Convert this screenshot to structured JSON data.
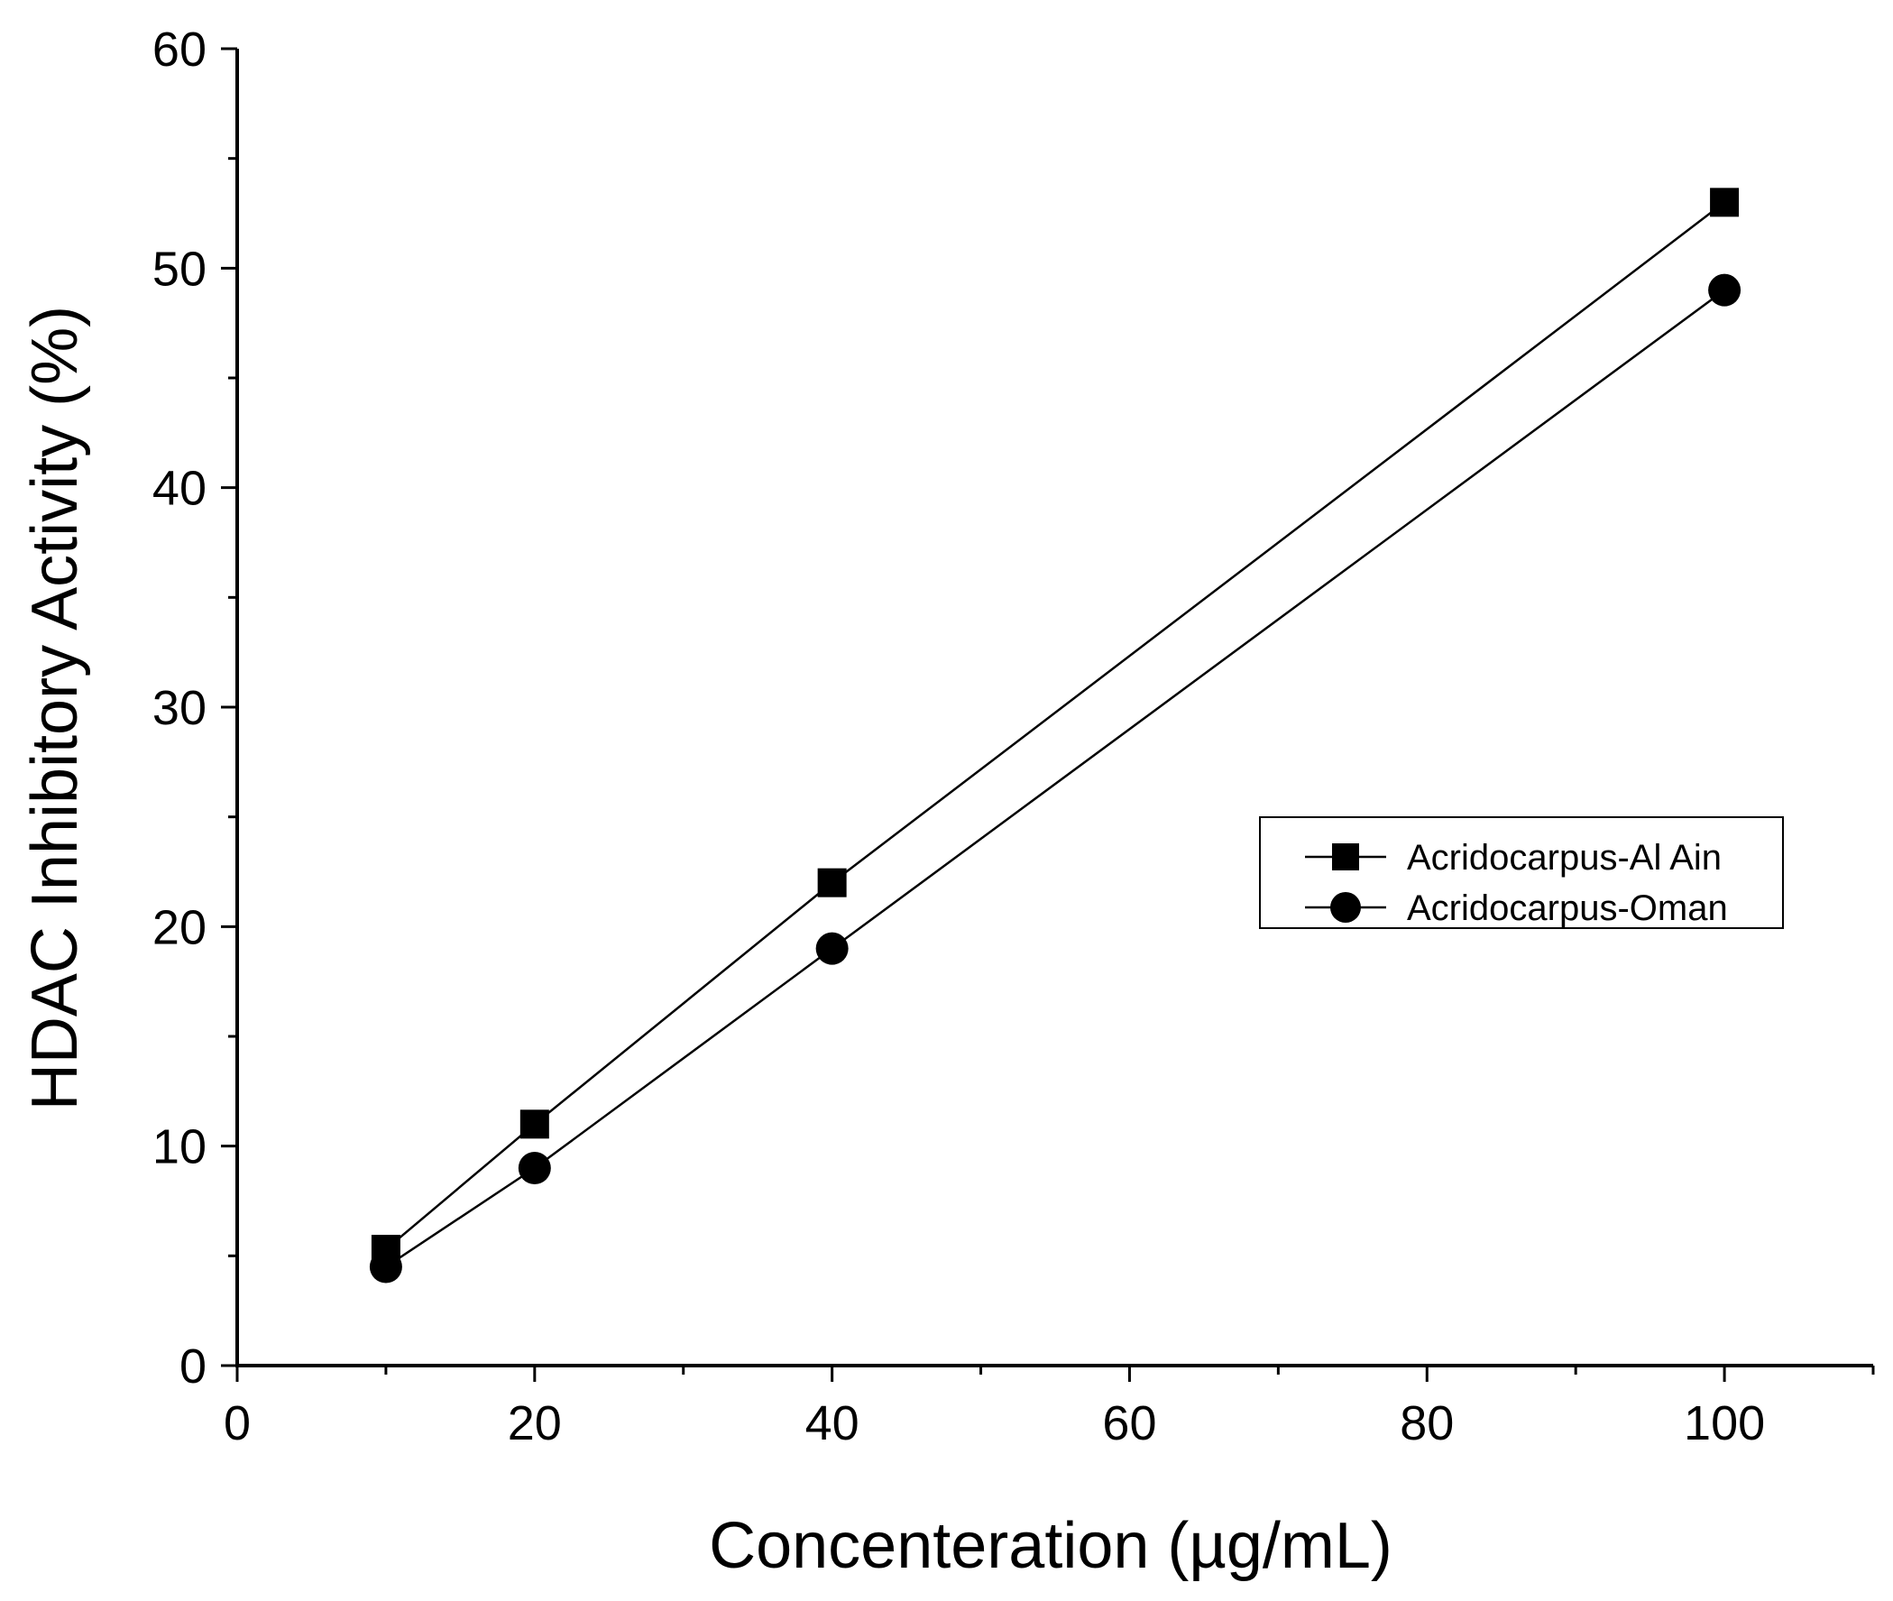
{
  "chart_data": {
    "type": "line",
    "title": "",
    "xlabel": "Concenteration (µg/mL)",
    "ylabel": "HDAC Inhibitory Activity (%)",
    "xlim": [
      0,
      110
    ],
    "ylim": [
      0,
      60
    ],
    "xticks": [
      0,
      20,
      40,
      60,
      80,
      100
    ],
    "yticks": [
      0,
      10,
      20,
      30,
      40,
      50,
      60
    ],
    "x_minor_step": 10,
    "y_minor_step": 5,
    "grid": false,
    "legend_position": "right-middle",
    "series": [
      {
        "name": "Acridocarpus-Al Ain",
        "marker": "square",
        "color": "#000000",
        "x": [
          10,
          20,
          40,
          100
        ],
        "y": [
          5.3,
          11,
          22,
          53
        ]
      },
      {
        "name": "Acridocarpus-Oman",
        "marker": "circle",
        "color": "#000000",
        "x": [
          10,
          20,
          40,
          100
        ],
        "y": [
          4.5,
          9,
          19,
          49
        ]
      }
    ]
  }
}
